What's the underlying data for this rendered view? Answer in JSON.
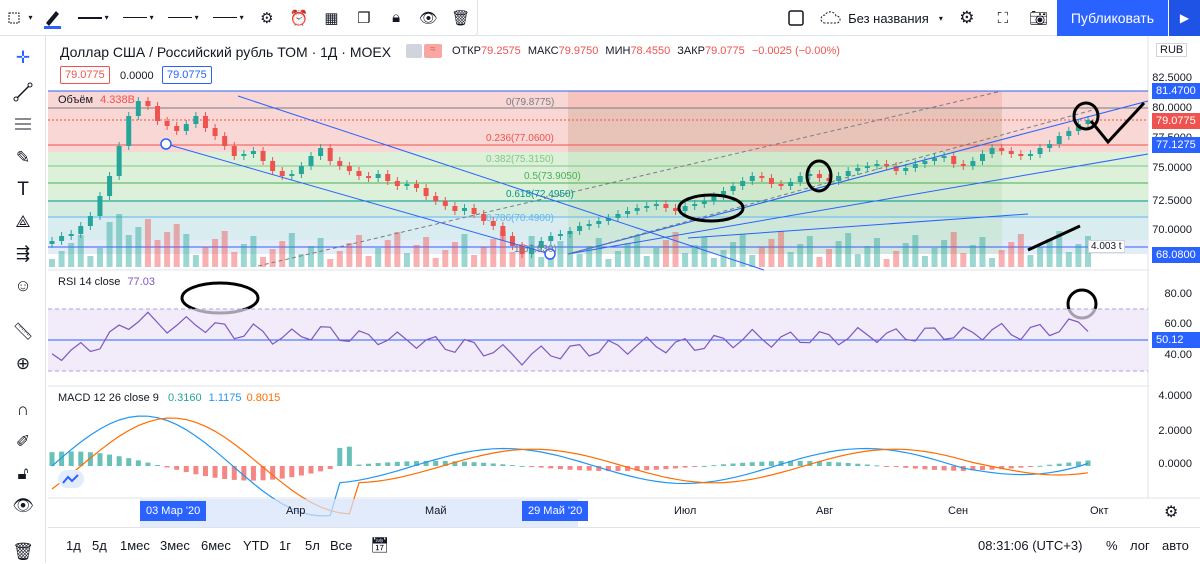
{
  "toolbar": {
    "chart_name": "Без названия",
    "publish_label": "Публиковать"
  },
  "legend": {
    "title": "Доллар США / Российский рубль ТОМ · 1Д · MOEX",
    "open_label": "ОТКР",
    "open": "79.2575",
    "high_label": "МАКС",
    "high": "79.9750",
    "low_label": "МИН",
    "low": "78.4550",
    "close_label": "ЗАКР",
    "close": "79.0775",
    "change": "−0.0025 (−0.00%)",
    "bid": "79.0775",
    "spread": "0.0000",
    "ask": "79.0775",
    "currency": "RUB"
  },
  "volume": {
    "label": "Объём",
    "value": "4.338B",
    "tag": "4.003 t"
  },
  "fib": [
    {
      "text": "0(79.8775)"
    },
    {
      "text": "0.236(77.0600)"
    },
    {
      "text": "0.382(75.3150)"
    },
    {
      "text": "0.5(73.9050)"
    },
    {
      "text": "0.618(72.4950)"
    },
    {
      "text": "0.786(70.4900)"
    },
    {
      "text": "1(67.930)"
    }
  ],
  "price_axis": [
    "82.5000",
    "80.0000",
    "77.5000",
    "75.0000",
    "72.5000",
    "70.0000"
  ],
  "price_tags": {
    "upper": "81.4700",
    "current": "79.0775",
    "level": "77.1275",
    "lower": "68.0800"
  },
  "rsi": {
    "label": "RSI 14 close",
    "value": "77.03",
    "axis": [
      "80.00",
      "60.00",
      "40.00"
    ],
    "tag": "50.12"
  },
  "macd": {
    "label": "MACD 12 26 close 9",
    "v1": "0.3160",
    "v2": "1.1175",
    "v3": "0.8015",
    "axis": [
      "4.0000",
      "2.0000",
      "0.0000"
    ]
  },
  "time_axis": {
    "labels": [
      "Апр",
      "Май",
      "Июл",
      "Авг",
      "Сен",
      "Окт"
    ],
    "highlight_start": "03 Мар '20",
    "highlight_end": "29 Май '20"
  },
  "bottombar": {
    "ranges": [
      "1д",
      "5д",
      "1мес",
      "3мес",
      "6мес",
      "YTD",
      "1г",
      "5л",
      "Все"
    ],
    "clock": "08:31:06 (UTC+3)",
    "percent": "%",
    "log": "лог",
    "auto": "авто"
  },
  "colors": {
    "up": "#26a69a",
    "down": "#ef5350",
    "accent": "#2962ff",
    "rsi": "#7e57c2"
  }
}
